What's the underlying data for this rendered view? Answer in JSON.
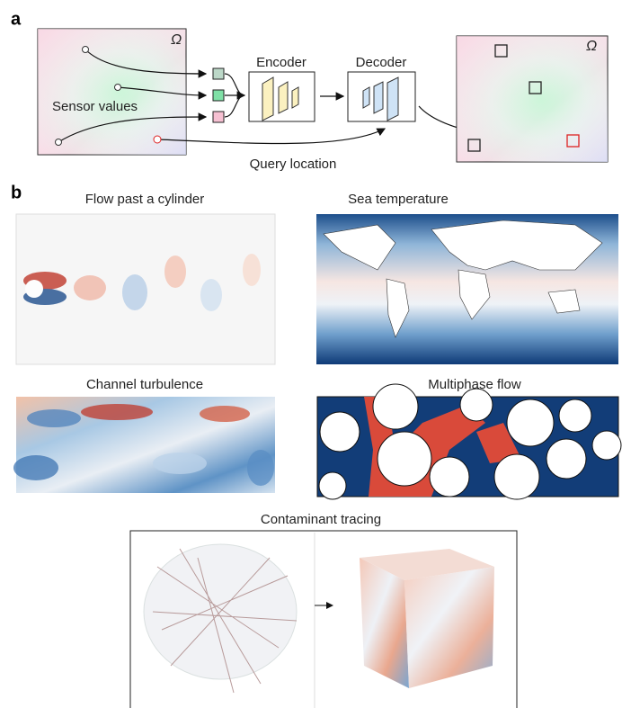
{
  "panel_a": {
    "label": "a",
    "omega_left": "Ω",
    "sensor_label": "Sensor values",
    "encoder": "Encoder",
    "decoder": "Decoder",
    "query_label": "Query location",
    "omega_right": "Ω"
  },
  "panel_b": {
    "label": "b",
    "panels": [
      {
        "title": "Flow past a cylinder"
      },
      {
        "title": "Sea temperature"
      },
      {
        "title": "Channel turbulence"
      },
      {
        "title": "Multiphase flow"
      },
      {
        "title": "Contaminant tracing"
      }
    ]
  }
}
